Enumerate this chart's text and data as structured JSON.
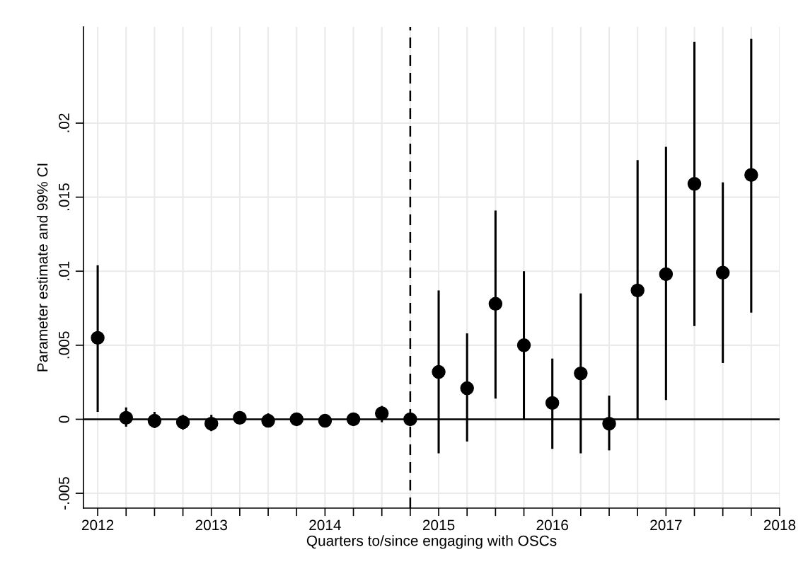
{
  "chart_data": {
    "type": "scatter",
    "xlabel": "Quarters to/since engaging with OSCs",
    "ylabel": "Parameter estimate and 99% CI",
    "x": [
      2012,
      2012.25,
      2012.5,
      2012.75,
      2013,
      2013.25,
      2013.5,
      2013.75,
      2014,
      2014.25,
      2014.5,
      2014.75,
      2015,
      2015.25,
      2015.5,
      2015.75,
      2016,
      2016.25,
      2016.5,
      2016.75,
      2017,
      2017.25,
      2017.5,
      2017.75
    ],
    "series": [
      {
        "color": "#000000",
        "values": [
          0.0055,
          0.0001,
          -0.0001,
          -0.0002,
          -0.0003,
          0.0001,
          -0.0001,
          0,
          -0.0001,
          0,
          0.0004,
          0,
          0.0032,
          0.0021,
          0.0078,
          0.005,
          0.0011,
          0.0031,
          -0.0003,
          0.0087,
          0.0098,
          0.0159,
          0.0099,
          0.0165
        ],
        "errors": [
          [
            0.0005,
            0.0104
          ],
          [
            -0.0005,
            0.0008
          ],
          [
            -0.0006,
            0.0005
          ],
          [
            -0.0007,
            0.0003
          ],
          [
            -0.0008,
            0.0003
          ],
          null,
          [
            -0.0005,
            0.0004
          ],
          null,
          null,
          null,
          [
            -0.0002,
            0.0009
          ],
          null,
          [
            -0.0023,
            0.0087
          ],
          [
            -0.0015,
            0.0058
          ],
          [
            0.0014,
            0.0141
          ],
          [
            0,
            0.01
          ],
          [
            -0.002,
            0.0041
          ],
          [
            -0.0023,
            0.0085
          ],
          [
            -0.0021,
            0.0016
          ],
          [
            0,
            0.0175
          ],
          [
            0.0013,
            0.0184
          ],
          [
            0.0063,
            0.0255
          ],
          [
            0.0038,
            0.016
          ],
          [
            0.0072,
            0.0257
          ]
        ]
      }
    ],
    "marker": "circle",
    "grid": true,
    "xlim": [
      2011.875,
      2018
    ],
    "xticks": [
      2012,
      {
        "value": 2012.25,
        "label": null
      },
      {
        "value": 2012.5,
        "label": null
      },
      {
        "value": 2012.75,
        "label": null
      },
      2013,
      {
        "value": 2013.25,
        "label": null
      },
      {
        "value": 2013.5,
        "label": null
      },
      {
        "value": 2013.75,
        "label": null
      },
      2014,
      {
        "value": 2014.25,
        "label": null
      },
      {
        "value": 2014.5,
        "label": null
      },
      {
        "value": 2014.75,
        "label": null
      },
      2015,
      {
        "value": 2015.25,
        "label": null
      },
      {
        "value": 2015.5,
        "label": null
      },
      {
        "value": 2015.75,
        "label": null
      },
      2016,
      {
        "value": 2016.25,
        "label": null
      },
      {
        "value": 2016.5,
        "label": null
      },
      {
        "value": 2016.75,
        "label": null
      },
      2017,
      {
        "value": 2017.25,
        "label": null
      },
      {
        "value": 2017.5,
        "label": null
      },
      {
        "value": 2017.75,
        "label": null
      },
      2018
    ],
    "ylim": [
      -0.006,
      0.0265
    ],
    "yticks": [
      {
        "value": -0.005,
        "label": "-.005"
      },
      0,
      {
        "value": 0.005,
        "label": ".005"
      },
      {
        "value": 0.01,
        "label": ".01"
      },
      {
        "value": 0.015,
        "label": ".015"
      },
      {
        "value": 0.02,
        "label": ".02"
      }
    ],
    "ref_lines": [
      {
        "axis": "y",
        "value": 0,
        "color": "#000000",
        "line_style": "solid"
      },
      {
        "axis": "x",
        "value": 2014.75,
        "color": "#000000",
        "line_style": "dashed"
      }
    ]
  }
}
